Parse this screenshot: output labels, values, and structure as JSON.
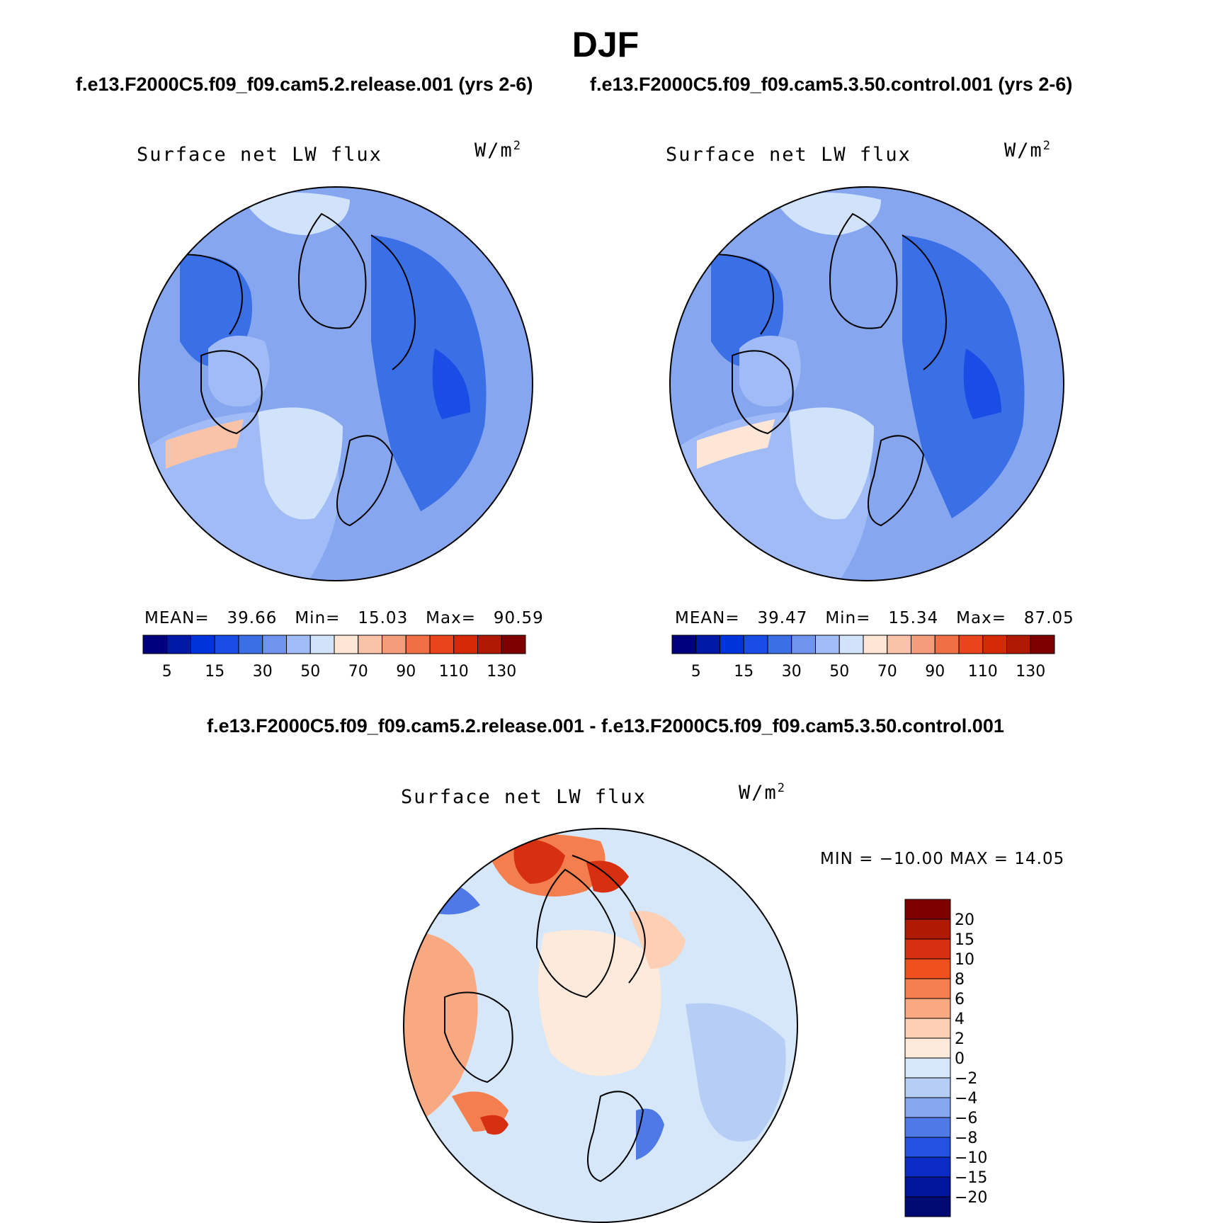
{
  "figure": {
    "season": "DJF",
    "case1_title": "f.e13.F2000C5.f09_f09.cam5.2.release.001 (yrs 2-6)",
    "case2_title": "f.e13.F2000C5.f09_f09.cam5.3.50.control.001 (yrs 2-6)",
    "diff_title": "f.e13.F2000C5.f09_f09.cam5.2.release.001 - f.e13.F2000C5.f09_f09.cam5.3.50.control.001"
  },
  "panels": [
    {
      "variable": "Surface net LW flux",
      "units_base": "W/m",
      "units_exp": "2",
      "mean_label": "MEAN=",
      "mean_value": "39.66",
      "min_label": "Min=",
      "min_value": "15.03",
      "max_label": "Max=",
      "max_value": "90.59"
    },
    {
      "variable": "Surface net LW flux",
      "units_base": "W/m",
      "units_exp": "2",
      "mean_label": "MEAN=",
      "mean_value": "39.47",
      "min_label": "Min=",
      "min_value": "15.34",
      "max_label": "Max=",
      "max_value": "87.05"
    }
  ],
  "diff_panel": {
    "variable": "Surface net LW flux",
    "units_base": "W/m",
    "units_exp": "2",
    "min_max_text": "MIN = −10.00 MAX =   14.05"
  },
  "colorbar_main": {
    "colors": [
      "#00007f",
      "#0019a6",
      "#0033d9",
      "#1a4de6",
      "#3b6fe6",
      "#6e94ee",
      "#a1bbf6",
      "#d1e3fb",
      "#fde6d6",
      "#f9c3a8",
      "#f59c7b",
      "#f06f45",
      "#e8451c",
      "#d42a08",
      "#b01a04",
      "#7f0000"
    ],
    "tick_labels": [
      "5",
      "15",
      "30",
      "50",
      "70",
      "90",
      "110",
      "130"
    ]
  },
  "colorbar_diff": {
    "colors": [
      "#7f0000",
      "#b01a04",
      "#d63010",
      "#f0501d",
      "#f57e4e",
      "#f9a982",
      "#fdd0b5",
      "#fdeadb",
      "#d6e7fa",
      "#b6cdf6",
      "#86a7f0",
      "#4f79e6",
      "#2351e0",
      "#0a2bc6",
      "#00159c",
      "#000a73"
    ],
    "tick_labels": [
      "20",
      "15",
      "10",
      "8",
      "6",
      "4",
      "2",
      "0",
      "−2",
      "−4",
      "−6",
      "−8",
      "−10",
      "−15",
      "−20"
    ]
  },
  "map_fields": {
    "base": "#86a7f0",
    "diff_base": "#d6e7fa"
  },
  "chart_data": {
    "type": "heatmap",
    "title": "DJF",
    "projection": "north polar stereographic",
    "variable": "Surface net LW flux",
    "units": "W/m2",
    "panels": [
      {
        "case": "f.e13.F2000C5.f09_f09.cam5.2.release.001 (yrs 2-6)",
        "mean": 39.66,
        "min": 15.03,
        "max": 90.59,
        "contour_levels": [
          5,
          10,
          15,
          20,
          30,
          40,
          50,
          60,
          70,
          80,
          90,
          100,
          110,
          120,
          130
        ]
      },
      {
        "case": "f.e13.F2000C5.f09_f09.cam5.3.50.control.001 (yrs 2-6)",
        "mean": 39.47,
        "min": 15.34,
        "max": 87.05,
        "contour_levels": [
          5,
          10,
          15,
          20,
          30,
          40,
          50,
          60,
          70,
          80,
          90,
          100,
          110,
          120,
          130
        ]
      },
      {
        "case": "difference",
        "min": -10.0,
        "max": 14.05,
        "contour_levels": [
          -20,
          -15,
          -10,
          -8,
          -6,
          -4,
          -2,
          0,
          2,
          4,
          6,
          8,
          10,
          15,
          20
        ]
      }
    ]
  }
}
